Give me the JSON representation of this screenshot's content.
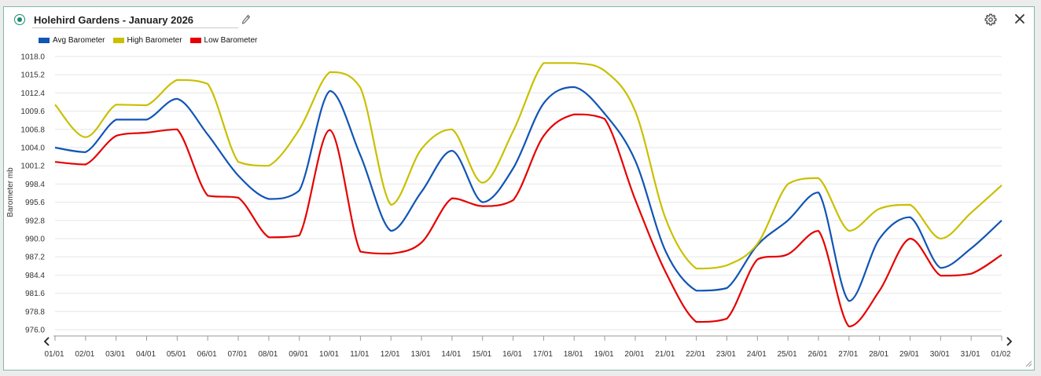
{
  "header": {
    "title": "Holehird Gardens - January 2026",
    "edit_icon": "pencil-icon",
    "settings_icon": "gear-icon",
    "close_icon": "close-icon",
    "status_icon": "radio-dot-icon",
    "accent_color": "#1a8a6e"
  },
  "nav": {
    "prev_icon": "chevron-left-icon",
    "next_icon": "chevron-right-icon"
  },
  "chart_data": {
    "type": "line",
    "ylabel": "Barometer mb",
    "ylim": [
      976.0,
      1018.0
    ],
    "yticks": [
      "1018.0",
      "1015.2",
      "1012.4",
      "1009.6",
      "1006.8",
      "1004.0",
      "1001.2",
      "998.4",
      "995.6",
      "992.8",
      "990.0",
      "987.2",
      "984.4",
      "981.6",
      "978.8",
      "976.0"
    ],
    "x": [
      "01/01",
      "02/01",
      "03/01",
      "04/01",
      "05/01",
      "06/01",
      "07/01",
      "08/01",
      "09/01",
      "10/01",
      "11/01",
      "12/01",
      "13/01",
      "14/01",
      "15/01",
      "16/01",
      "17/01",
      "18/01",
      "19/01",
      "20/01",
      "21/01",
      "22/01",
      "23/01",
      "24/01",
      "25/01",
      "26/01",
      "27/01",
      "28/01",
      "29/01",
      "30/01",
      "31/01",
      "01/02"
    ],
    "grid": true,
    "legend_position": "top-left",
    "series": [
      {
        "name": "Avg Barometer",
        "color": "#1155b5",
        "values": [
          1004.0,
          1003.3,
          1008.3,
          1008.3,
          1011.5,
          1006.0,
          999.7,
          996.1,
          997.4,
          1012.7,
          1002.8,
          991.2,
          997.2,
          1003.5,
          995.6,
          1000.8,
          1010.8,
          1013.3,
          1009.2,
          1002.0,
          988.0,
          982.0,
          982.4,
          989.0,
          992.8,
          997.1,
          980.4,
          990.0,
          993.3,
          985.5,
          988.5,
          992.8
        ]
      },
      {
        "name": "High Barometer",
        "color": "#c9c000",
        "values": [
          1010.6,
          1005.6,
          1010.6,
          1010.5,
          1014.4,
          1013.8,
          1001.8,
          1001.2,
          1006.8,
          1015.6,
          1013.2,
          995.2,
          1003.8,
          1006.8,
          998.6,
          1006.5,
          1017.0,
          1017.0,
          1015.8,
          1009.6,
          993.0,
          985.4,
          985.9,
          989.2,
          998.4,
          999.3,
          991.2,
          994.6,
          995.2,
          990.0,
          994.0,
          998.2
        ]
      },
      {
        "name": "Low Barometer",
        "color": "#e60000",
        "values": [
          1001.8,
          1001.4,
          1005.8,
          1006.3,
          1006.8,
          996.6,
          996.3,
          990.2,
          990.5,
          1006.7,
          988.0,
          987.7,
          989.4,
          996.2,
          995.0,
          995.9,
          1005.8,
          1009.1,
          1008.4,
          996.0,
          984.8,
          977.2,
          977.7,
          986.8,
          987.6,
          991.2,
          976.5,
          982.0,
          990.0,
          984.3,
          984.6,
          987.5
        ]
      }
    ]
  }
}
